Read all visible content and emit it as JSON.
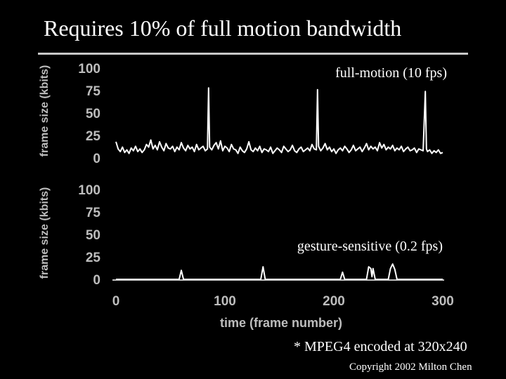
{
  "slide": {
    "title": "Requires 10% of full motion bandwidth",
    "footnote": "* MPEG4 encoded at 320x240",
    "copyright": "Copyright 2002 Milton Chen"
  },
  "colors": {
    "background": "#000000",
    "text": "#ffffff",
    "divider": "#c8c8c8",
    "line": "#ffffff"
  },
  "chart_data": [
    {
      "type": "line",
      "title": "full-motion (10 fps)",
      "ylabel": "frame size (kbits)",
      "xlabel": "",
      "xlim": [
        0,
        300
      ],
      "ylim": [
        0,
        100
      ],
      "yticks": [
        "0",
        "25",
        "50",
        "75",
        "100"
      ],
      "grid": false,
      "series": [
        {
          "x": [
            0,
            2,
            4,
            6,
            8,
            10,
            12,
            14,
            16,
            18,
            20,
            22,
            24,
            26,
            28,
            30,
            32,
            34,
            36,
            38,
            40,
            42,
            44,
            46,
            48,
            50,
            52,
            54,
            56,
            58,
            60,
            62,
            64,
            66,
            68,
            70,
            72,
            74,
            76,
            78,
            80,
            82,
            84,
            85,
            86,
            88,
            90,
            92,
            94,
            96,
            98,
            100,
            102,
            104,
            106,
            108,
            110,
            112,
            114,
            116,
            118,
            120,
            122,
            124,
            126,
            128,
            130,
            132,
            134,
            136,
            138,
            140,
            142,
            144,
            146,
            148,
            150,
            152,
            154,
            156,
            158,
            160,
            162,
            164,
            166,
            168,
            170,
            172,
            174,
            176,
            178,
            180,
            182,
            184,
            185,
            186,
            188,
            190,
            192,
            194,
            196,
            198,
            200,
            202,
            204,
            206,
            208,
            210,
            212,
            214,
            216,
            218,
            220,
            222,
            224,
            226,
            228,
            230,
            232,
            234,
            236,
            238,
            240,
            242,
            244,
            246,
            248,
            250,
            252,
            254,
            256,
            258,
            260,
            262,
            264,
            266,
            268,
            270,
            272,
            274,
            276,
            278,
            280,
            282,
            284,
            285,
            286,
            288,
            290,
            292,
            294,
            296,
            298,
            300
          ],
          "y": [
            18,
            10,
            7,
            12,
            6,
            9,
            5,
            11,
            8,
            13,
            7,
            10,
            6,
            9,
            15,
            12,
            20,
            10,
            14,
            9,
            18,
            12,
            8,
            16,
            11,
            10,
            13,
            7,
            12,
            9,
            17,
            11,
            8,
            14,
            10,
            12,
            7,
            15,
            9,
            11,
            13,
            8,
            10,
            78,
            12,
            9,
            14,
            17,
            10,
            19,
            8,
            13,
            11,
            7,
            15,
            10,
            9,
            5,
            12,
            8,
            6,
            10,
            18,
            9,
            7,
            11,
            8,
            13,
            6,
            10,
            9,
            7,
            12,
            5,
            8,
            11,
            9,
            6,
            13,
            10,
            7,
            9,
            14,
            8,
            6,
            10,
            12,
            7,
            9,
            11,
            8,
            15,
            10,
            9,
            76,
            13,
            8,
            11,
            16,
            9,
            12,
            7,
            10,
            5,
            9,
            11,
            8,
            13,
            10,
            6,
            9,
            14,
            8,
            10,
            12,
            7,
            11,
            16,
            9,
            13,
            10,
            12,
            8,
            17,
            11,
            15,
            9,
            12,
            10,
            14,
            8,
            11,
            9,
            13,
            7,
            10,
            12,
            8,
            9,
            11,
            6,
            10,
            9,
            8,
            74,
            10,
            7,
            9,
            5,
            8,
            6,
            9,
            5,
            6
          ]
        }
      ]
    },
    {
      "type": "line",
      "title": "gesture-sensitive (0.2 fps)",
      "ylabel": "frame size (kbits)",
      "xlabel": "time (frame number)",
      "xlim": [
        0,
        300
      ],
      "ylim": [
        0,
        100
      ],
      "xticks": [
        "0",
        "100",
        "200",
        "300"
      ],
      "yticks": [
        "0",
        "25",
        "50",
        "75",
        "100"
      ],
      "grid": false,
      "series": [
        {
          "x": [
            0,
            58,
            60,
            62,
            133,
            135,
            137,
            206,
            208,
            210,
            230,
            232,
            234,
            235,
            236,
            238,
            250,
            252,
            254,
            256,
            258,
            300
          ],
          "y": [
            0,
            0,
            10,
            0,
            0,
            14,
            0,
            0,
            8,
            0,
            0,
            14,
            12,
            3,
            12,
            0,
            0,
            12,
            17,
            11,
            0,
            0
          ]
        }
      ]
    }
  ]
}
